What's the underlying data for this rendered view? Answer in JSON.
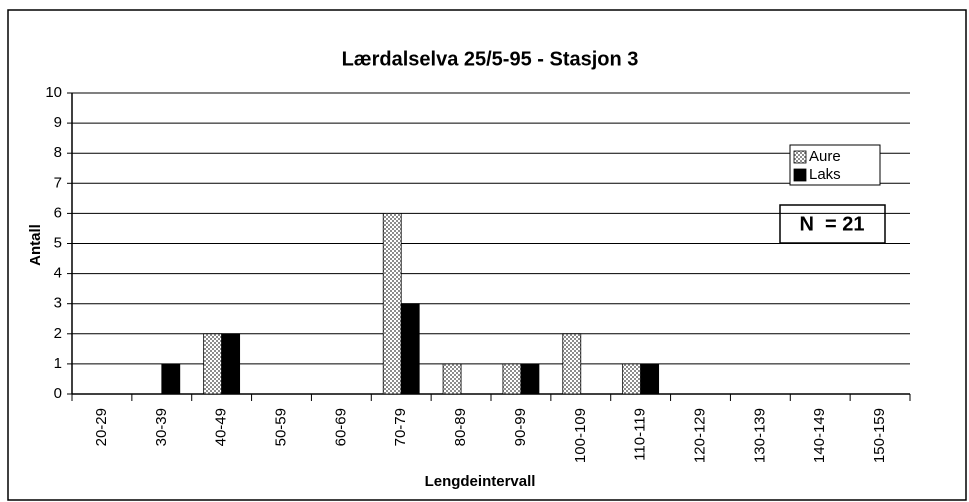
{
  "chart_data": {
    "type": "bar",
    "title": "Lærdalselva 25/5-95 - Stasjon 3",
    "x_label": "Lengdeintervall",
    "y_label": "Antall",
    "annotation": "N  = 21",
    "categories": [
      "20-29",
      "30-39",
      "40-49",
      "50-59",
      "60-69",
      "70-79",
      "80-89",
      "90-99",
      "100-109",
      "110-119",
      "120-129",
      "130-139",
      "140-149",
      "150-159"
    ],
    "series": [
      {
        "name": "Aure",
        "color": "#8c8c8c",
        "pattern": "checker",
        "values": [
          0,
          0,
          2,
          0,
          0,
          6,
          1,
          1,
          2,
          1,
          0,
          0,
          0,
          0
        ]
      },
      {
        "name": "Laks",
        "color": "#000000",
        "values": [
          0,
          1,
          2,
          0,
          0,
          3,
          0,
          1,
          0,
          1,
          0,
          0,
          0,
          0
        ]
      }
    ],
    "ylim": [
      0,
      10
    ],
    "yticks": [
      0,
      1,
      2,
      3,
      4,
      5,
      6,
      7,
      8,
      9,
      10
    ],
    "grid": true,
    "legend": "upper right"
  }
}
